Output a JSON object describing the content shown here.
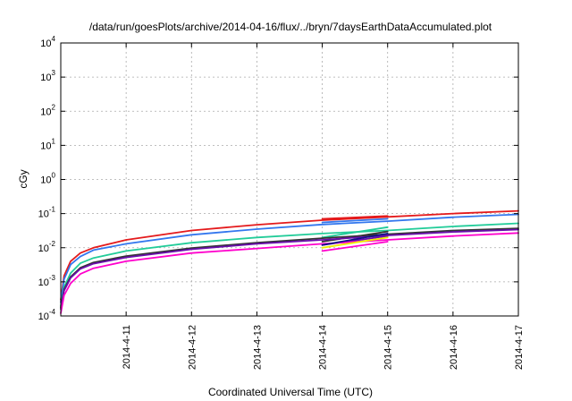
{
  "chart_data": {
    "type": "line",
    "title": "/data/run/goesPlots/archive/2014-04-16/flux/../bryn/7daysEarthDataAccumulated.plot",
    "xlabel": "Coordinated Universal Time (UTC)",
    "ylabel": "cGy",
    "y_scale": "log",
    "ylim": [
      0.0001,
      10000
    ],
    "xlim": [
      0,
      7
    ],
    "x_tick_values": [
      1,
      2,
      3,
      4,
      5,
      6,
      7
    ],
    "x_tick_labels": [
      "2014-4-11",
      "2014-4-12",
      "2014-4-13",
      "2014-4-14",
      "2014-4-15",
      "2014-4-16",
      "2014-4-17"
    ],
    "y_tick_values": [
      0.0001,
      0.001,
      0.01,
      0.1,
      1,
      10,
      100,
      1000,
      10000
    ],
    "y_tick_labels": [
      {
        "base": "10",
        "exp": "-4"
      },
      {
        "base": "10",
        "exp": "-3"
      },
      {
        "base": "10",
        "exp": "-2"
      },
      {
        "base": "10",
        "exp": "-1"
      },
      {
        "base": "10",
        "exp": "0"
      },
      {
        "base": "10",
        "exp": "1"
      },
      {
        "base": "10",
        "exp": "2"
      },
      {
        "base": "10",
        "exp": "3"
      },
      {
        "base": "10",
        "exp": "4"
      }
    ],
    "grid": true,
    "legend": "none",
    "series": [
      {
        "color": "#e41a1c",
        "x": [
          0,
          0.05,
          0.15,
          0.3,
          0.5,
          1,
          2,
          3,
          4,
          5,
          6,
          7
        ],
        "y": [
          0.0003,
          0.0015,
          0.004,
          0.007,
          0.01,
          0.017,
          0.032,
          0.047,
          0.064,
          0.08,
          0.1,
          0.12
        ]
      },
      {
        "color": "#e41a1c",
        "x": [
          4,
          5
        ],
        "y": [
          0.07,
          0.085
        ]
      },
      {
        "color": "#3377ee",
        "x": [
          0,
          0.05,
          0.15,
          0.3,
          0.5,
          1,
          2,
          3,
          4,
          5,
          6,
          7
        ],
        "y": [
          0.00025,
          0.0012,
          0.0032,
          0.0055,
          0.0085,
          0.013,
          0.024,
          0.035,
          0.048,
          0.06,
          0.078,
          0.095
        ]
      },
      {
        "color": "#3377ee",
        "x": [
          4,
          5
        ],
        "y": [
          0.055,
          0.07
        ]
      },
      {
        "color": "#22cc99",
        "x": [
          0,
          0.05,
          0.15,
          0.3,
          0.5,
          1,
          2,
          3,
          4,
          5,
          6,
          7
        ],
        "y": [
          0.0002,
          0.0007,
          0.0018,
          0.0035,
          0.005,
          0.008,
          0.014,
          0.02,
          0.026,
          0.032,
          0.042,
          0.052
        ]
      },
      {
        "color": "#22cc99",
        "x": [
          4,
          5
        ],
        "y": [
          0.02,
          0.04
        ]
      },
      {
        "color": "#333333",
        "x": [
          0,
          0.05,
          0.15,
          0.3,
          0.5,
          1,
          2,
          3,
          4,
          5,
          6,
          7
        ],
        "y": [
          0.00018,
          0.0006,
          0.0014,
          0.0026,
          0.0037,
          0.0057,
          0.0098,
          0.014,
          0.019,
          0.025,
          0.032,
          0.037
        ]
      },
      {
        "color": "#333333",
        "x": [
          4,
          5
        ],
        "y": [
          0.015,
          0.03
        ]
      },
      {
        "color": "#6a0dad",
        "x": [
          0,
          0.05,
          0.15,
          0.3,
          0.5,
          1,
          2,
          3,
          4,
          5,
          6,
          7
        ],
        "y": [
          0.00016,
          0.00055,
          0.0013,
          0.0024,
          0.0034,
          0.0052,
          0.009,
          0.013,
          0.017,
          0.023,
          0.029,
          0.034
        ]
      },
      {
        "color": "#6a0dad",
        "x": [
          4,
          5
        ],
        "y": [
          0.012,
          0.022
        ]
      },
      {
        "color": "#ff00cc",
        "x": [
          0,
          0.05,
          0.15,
          0.3,
          0.5,
          1,
          2,
          3,
          4,
          5,
          6,
          7
        ],
        "y": [
          0.00012,
          0.0004,
          0.0009,
          0.0017,
          0.0025,
          0.004,
          0.007,
          0.0095,
          0.013,
          0.017,
          0.022,
          0.027
        ]
      },
      {
        "color": "#ff00cc",
        "x": [
          4,
          5
        ],
        "y": [
          0.008,
          0.015
        ]
      },
      {
        "color": "#eeee00",
        "x": [
          4,
          5
        ],
        "y": [
          0.01,
          0.02
        ]
      },
      {
        "color": "#111188",
        "x": [
          4,
          5
        ],
        "y": [
          0.012,
          0.026
        ]
      }
    ]
  }
}
